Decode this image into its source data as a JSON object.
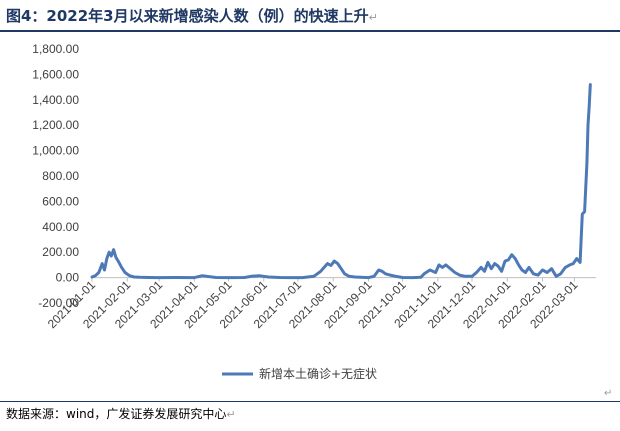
{
  "title": "图4：2022年3月以来新增感染人数（例）的快速上升",
  "source": "数据来源：wind，广发证券发展研究中心",
  "paragraph_mark": "↵",
  "colors": {
    "series": "#4e79b7",
    "axis": "#bfbfbf",
    "text": "#404040",
    "title": "#1f3864"
  },
  "chart_data": {
    "type": "line",
    "title": "",
    "xlabel": "",
    "ylabel": "",
    "ylim": [
      -200,
      1800
    ],
    "y_ticks": [
      "-200.00",
      "0.00",
      "200.00",
      "400.00",
      "600.00",
      "800.00",
      "1,000.00",
      "1,200.00",
      "1,400.00",
      "1,600.00",
      "1,800.00"
    ],
    "x_ticks": [
      "2021-01-01",
      "2021-02-01",
      "2021-03-01",
      "2021-04-01",
      "2021-05-01",
      "2021-06-01",
      "2021-07-01",
      "2021-08-01",
      "2021-09-01",
      "2021-10-01",
      "2021-11-01",
      "2021-12-01",
      "2022-01-01",
      "2022-02-01",
      "2022-03-01"
    ],
    "legend_position": "bottom",
    "grid": false,
    "series": [
      {
        "name": "新增本土确诊+无症状",
        "x": [
          "2021-01-01",
          "2021-01-04",
          "2021-01-07",
          "2021-01-10",
          "2021-01-12",
          "2021-01-14",
          "2021-01-16",
          "2021-01-18",
          "2021-01-20",
          "2021-01-22",
          "2021-01-24",
          "2021-01-27",
          "2021-01-30",
          "2021-02-03",
          "2021-02-07",
          "2021-02-12",
          "2021-02-20",
          "2021-03-01",
          "2021-03-15",
          "2021-04-01",
          "2021-04-08",
          "2021-04-12",
          "2021-04-20",
          "2021-05-01",
          "2021-05-15",
          "2021-05-21",
          "2021-05-28",
          "2021-06-05",
          "2021-06-15",
          "2021-06-25",
          "2021-07-05",
          "2021-07-15",
          "2021-07-21",
          "2021-07-24",
          "2021-07-27",
          "2021-07-30",
          "2021-08-02",
          "2021-08-05",
          "2021-08-08",
          "2021-08-11",
          "2021-08-15",
          "2021-08-20",
          "2021-08-25",
          "2021-09-01",
          "2021-09-06",
          "2021-09-10",
          "2021-09-13",
          "2021-09-16",
          "2021-09-20",
          "2021-09-25",
          "2021-10-01",
          "2021-10-10",
          "2021-10-17",
          "2021-10-20",
          "2021-10-25",
          "2021-10-30",
          "2021-11-02",
          "2021-11-05",
          "2021-11-08",
          "2021-11-12",
          "2021-11-16",
          "2021-11-20",
          "2021-11-25",
          "2021-12-01",
          "2021-12-05",
          "2021-12-09",
          "2021-12-12",
          "2021-12-15",
          "2021-12-18",
          "2021-12-21",
          "2021-12-24",
          "2021-12-27",
          "2021-12-30",
          "2022-01-02",
          "2022-01-05",
          "2022-01-08",
          "2022-01-11",
          "2022-01-14",
          "2022-01-17",
          "2022-01-20",
          "2022-01-24",
          "2022-01-28",
          "2022-02-01",
          "2022-02-05",
          "2022-02-09",
          "2022-02-13",
          "2022-02-17",
          "2022-02-21",
          "2022-02-25",
          "2022-02-28",
          "2022-03-03",
          "2022-03-06",
          "2022-03-08",
          "2022-03-10",
          "2022-03-12",
          "2022-03-13",
          "2022-03-14",
          "2022-03-15"
        ],
        "y": [
          5,
          15,
          40,
          110,
          60,
          150,
          200,
          170,
          220,
          160,
          130,
          80,
          40,
          15,
          5,
          2,
          1,
          0,
          1,
          0,
          15,
          10,
          1,
          0,
          1,
          10,
          15,
          5,
          1,
          0,
          0,
          10,
          50,
          80,
          110,
          95,
          130,
          110,
          70,
          30,
          10,
          5,
          2,
          0,
          10,
          60,
          50,
          30,
          20,
          10,
          1,
          0,
          2,
          30,
          60,
          40,
          100,
          80,
          100,
          70,
          40,
          20,
          10,
          10,
          40,
          80,
          50,
          120,
          70,
          110,
          90,
          50,
          130,
          140,
          180,
          150,
          100,
          60,
          40,
          80,
          30,
          20,
          60,
          40,
          70,
          10,
          30,
          80,
          100,
          110,
          150,
          120,
          500,
          520,
          900,
          1200,
          1350,
          1520
        ]
      }
    ]
  }
}
